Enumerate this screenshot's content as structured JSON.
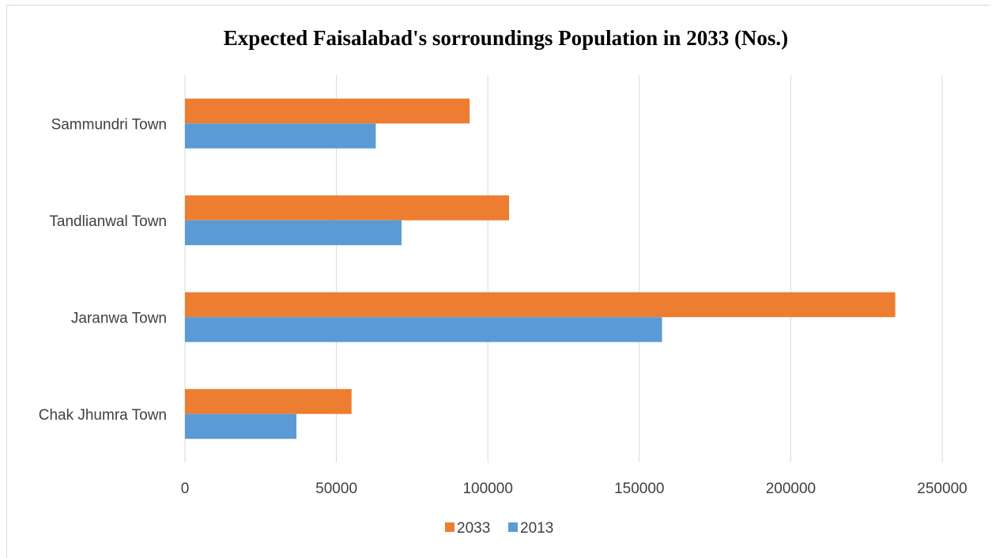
{
  "chart_data": {
    "type": "bar",
    "orientation": "horizontal",
    "title": "Expected Faisalabad's sorroundings Population in 2033 (Nos.)",
    "categories": [
      "Sammundri Town",
      "Tandlianwal Town",
      "Jaranwa Town",
      "Chak Jhumra Town"
    ],
    "series": [
      {
        "name": "2033",
        "color": "#ED7D31",
        "values": [
          94000,
          107000,
          234500,
          55000
        ]
      },
      {
        "name": "2013",
        "color": "#5B9BD5",
        "values": [
          63000,
          71500,
          157500,
          36800
        ]
      }
    ],
    "xlim": [
      0,
      250000
    ],
    "xticks": [
      "0",
      "50000",
      "100000",
      "150000",
      "200000",
      "250000"
    ],
    "grid": true,
    "legend_position": "bottom"
  }
}
